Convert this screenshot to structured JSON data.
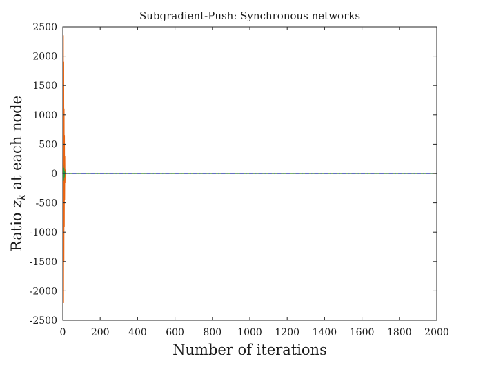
{
  "chart_data": {
    "type": "line",
    "title": "Subgradient-Push: Synchronous networks",
    "xlabel": "Number of iterations",
    "ylabel": {
      "prefix": "Ratio ",
      "var": "z",
      "sub": "k",
      "suffix": " at each node"
    },
    "xlim": [
      0,
      2000
    ],
    "ylim": [
      -2500,
      2500
    ],
    "xticks": [
      0,
      200,
      400,
      600,
      800,
      1000,
      1200,
      1400,
      1600,
      1800,
      2000
    ],
    "yticks": [
      2500,
      2000,
      1500,
      1000,
      500,
      0,
      -500,
      -1000,
      -1500,
      -2000,
      -2500
    ],
    "grid": false,
    "legend": "none",
    "series": [
      {
        "color": "#e8620f",
        "style": "solid",
        "points": [
          [
            0,
            0
          ],
          [
            1,
            1200
          ],
          [
            2,
            -1800
          ],
          [
            3,
            2350
          ],
          [
            4,
            -2200
          ],
          [
            5,
            1900
          ],
          [
            6,
            -1500
          ],
          [
            7,
            1100
          ],
          [
            8,
            -900
          ],
          [
            9,
            650
          ],
          [
            10,
            -450
          ],
          [
            11,
            300
          ],
          [
            12,
            -150
          ],
          [
            13,
            60
          ],
          [
            15,
            0
          ],
          [
            2000,
            0
          ]
        ]
      },
      {
        "color": "#2e9d3a",
        "style": "solid",
        "points": [
          [
            0,
            0
          ],
          [
            2,
            150
          ],
          [
            4,
            -120
          ],
          [
            6,
            90
          ],
          [
            8,
            -60
          ],
          [
            10,
            30
          ],
          [
            12,
            0
          ],
          [
            2000,
            0
          ]
        ]
      },
      {
        "color": "#2f3fd6",
        "style": "dashdot",
        "points": [
          [
            0,
            0
          ],
          [
            2000,
            0
          ]
        ]
      }
    ]
  }
}
